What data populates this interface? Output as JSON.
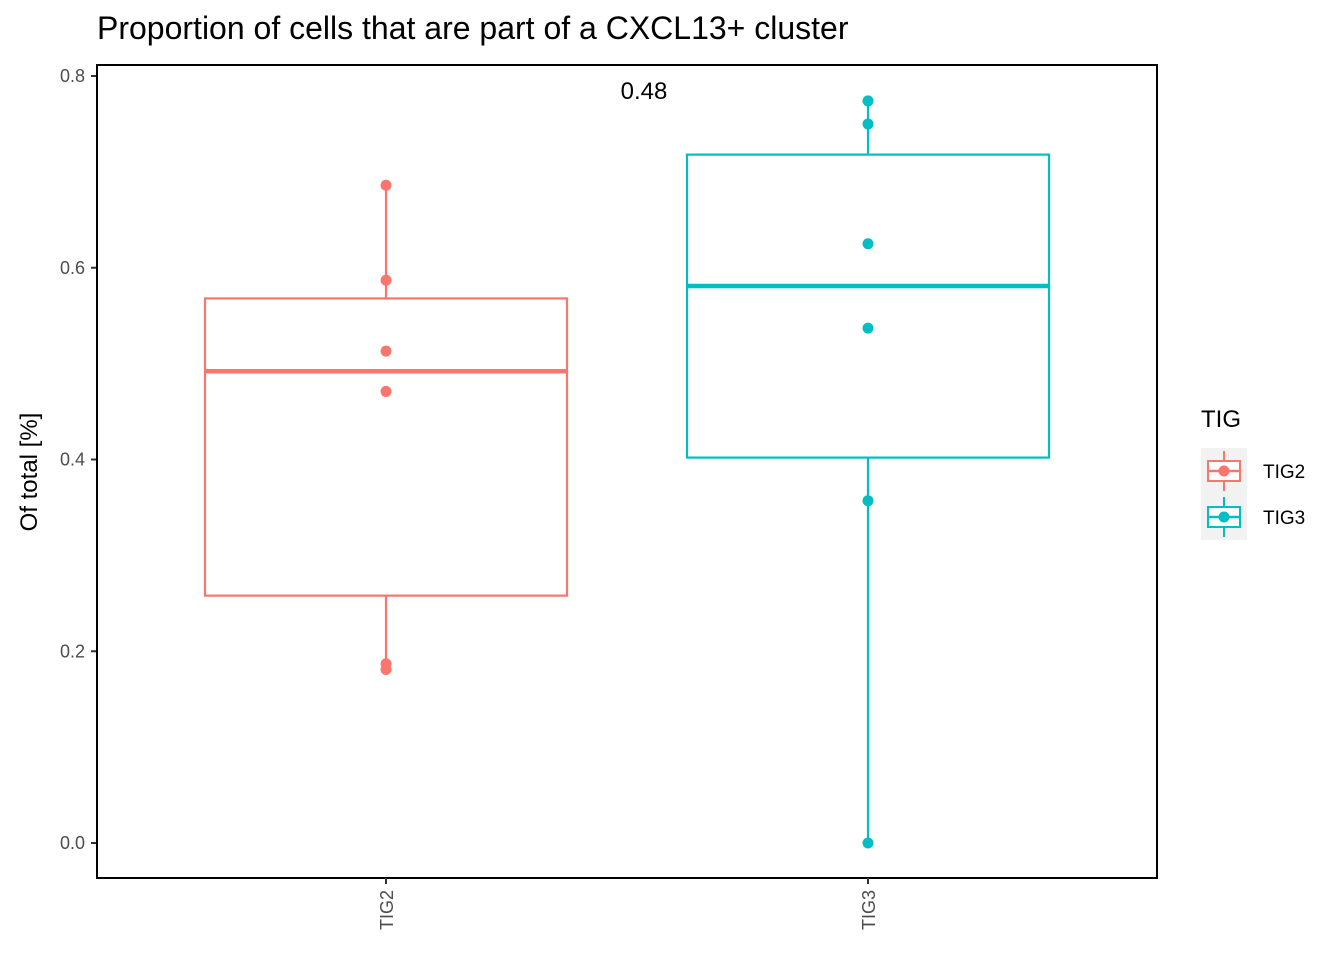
{
  "chart_data": {
    "type": "box",
    "title": "Proportion of cells that are part of a CXCL13+ cluster",
    "xlabel": "",
    "ylabel": "Of total [%]",
    "ylim": [
      -0.037,
      0.803
    ],
    "y_ticks": [
      "0.0",
      "0.2",
      "0.4",
      "0.6",
      "0.8"
    ],
    "grid": false,
    "categories": [
      "TIG2",
      "TIG3"
    ],
    "annotation": "0.48",
    "colors": {
      "TIG2": "#F8766D",
      "TIG3": "#00BFC4"
    },
    "boxes": [
      {
        "name": "TIG2",
        "whisker_low": 0.181,
        "q1": 0.258,
        "median": 0.492,
        "q3": 0.568,
        "whisker_high": 0.686,
        "points": [
          0.686,
          0.587,
          0.513,
          0.471,
          0.187,
          0.181
        ]
      },
      {
        "name": "TIG3",
        "whisker_low": 0.0,
        "q1": 0.402,
        "median": 0.581,
        "q3": 0.718,
        "whisker_high": 0.774,
        "points": [
          0.774,
          0.75,
          0.625,
          0.537,
          0.357,
          0.0
        ]
      }
    ],
    "legend": {
      "title": "TIG",
      "position": "right",
      "entries": [
        "TIG2",
        "TIG3"
      ]
    }
  }
}
